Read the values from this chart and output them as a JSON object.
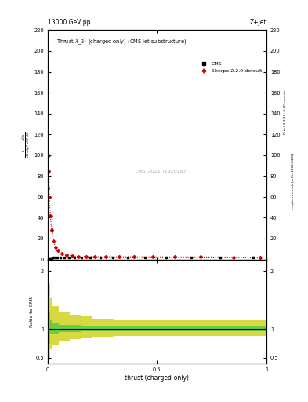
{
  "title_top": "13000 GeV pp",
  "title_right": "Z+Jet",
  "plot_title": "Thrust $\\lambda$_2$^1$ (charged only) (CMS jet substructure)",
  "xlabel": "thrust (charged-only)",
  "ylabel_ratio": "Ratio to CMS",
  "right_label": "mcplots.cern.ch [arXiv:1306.3436]",
  "right_label2": "Rivet 3.1.10, 3.3M events",
  "watermark": "CMS_2021_I1920187",
  "cms_label": "CMS",
  "sherpa_label": "Sherpa 2.2.9 default",
  "ylabel_lines": [
    "mathrm d$^2$N",
    "mathrm d p$_T$ mathrm d lambda"
  ],
  "sherpa_x": [
    0.001,
    0.003,
    0.005,
    0.008,
    0.012,
    0.018,
    0.025,
    0.035,
    0.048,
    0.065,
    0.085,
    0.11,
    0.14,
    0.175,
    0.215,
    0.265,
    0.325,
    0.395,
    0.48,
    0.58,
    0.7,
    0.85,
    0.97
  ],
  "sherpa_y": [
    68,
    100,
    85,
    60,
    42,
    28,
    18,
    12,
    8.5,
    6.0,
    4.5,
    3.5,
    3.0,
    2.8,
    2.7,
    2.6,
    2.5,
    2.5,
    2.5,
    2.4,
    2.4,
    2.3,
    2.2
  ],
  "cms_x": [
    0.003,
    0.006,
    0.01,
    0.015,
    0.022,
    0.03,
    0.042,
    0.057,
    0.075,
    0.097,
    0.123,
    0.155,
    0.195,
    0.242,
    0.298,
    0.365,
    0.444,
    0.54,
    0.655,
    0.79,
    0.94
  ],
  "cms_y": [
    0.5,
    0.8,
    1.2,
    1.5,
    1.8,
    1.9,
    2.0,
    2.0,
    2.0,
    2.0,
    2.0,
    2.0,
    2.0,
    2.0,
    2.0,
    2.0,
    2.0,
    2.0,
    2.0,
    1.8,
    2.0
  ],
  "cms_yerr": [
    0.15,
    0.2,
    0.25,
    0.3,
    0.3,
    0.25,
    0.25,
    0.2,
    0.2,
    0.2,
    0.2,
    0.2,
    0.2,
    0.2,
    0.2,
    0.2,
    0.2,
    0.2,
    0.2,
    0.3,
    0.4
  ],
  "ratio_bin_edges": [
    0.0,
    0.01,
    0.02,
    0.05,
    0.1,
    0.15,
    0.2,
    0.3,
    0.4,
    0.5,
    0.65,
    1.0
  ],
  "ratio_green_lo": [
    0.75,
    0.9,
    0.92,
    0.95,
    0.95,
    0.96,
    0.97,
    0.97,
    0.97,
    0.97,
    0.97
  ],
  "ratio_green_hi": [
    1.3,
    1.15,
    1.1,
    1.07,
    1.07,
    1.06,
    1.05,
    1.05,
    1.05,
    1.05,
    1.05
  ],
  "ratio_yellow_lo": [
    0.5,
    0.65,
    0.72,
    0.8,
    0.82,
    0.85,
    0.87,
    0.88,
    0.88,
    0.88,
    0.88
  ],
  "ratio_yellow_hi": [
    1.8,
    1.55,
    1.4,
    1.28,
    1.25,
    1.22,
    1.18,
    1.16,
    1.15,
    1.15,
    1.15
  ],
  "ylim_main": [
    0,
    220
  ],
  "ylim_ratio": [
    0.4,
    2.2
  ],
  "xlim": [
    0.0,
    1.0
  ],
  "color_cms": "#000000",
  "color_sherpa": "#cc0000",
  "color_green": "#44cc44",
  "color_yellow": "#cccc00",
  "bg_color": "#ffffff"
}
